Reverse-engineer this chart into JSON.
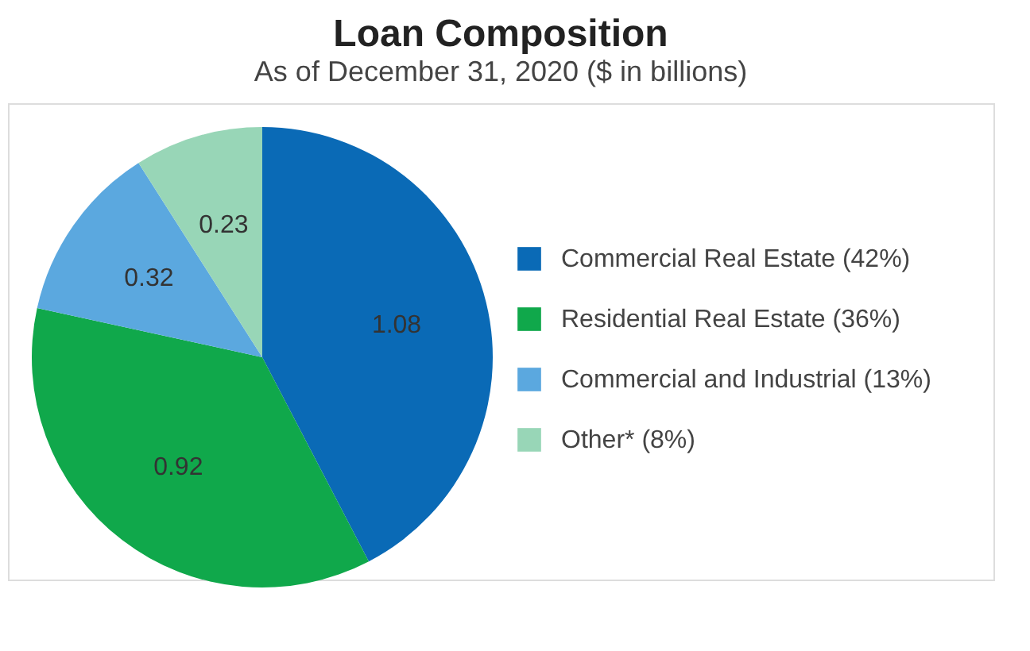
{
  "chart_data": {
    "type": "pie",
    "title": "Loan Composition",
    "subtitle": "As of December 31, 2020 ($ in billions)",
    "categories": [
      "Commercial Real Estate (42%)",
      "Residential Real Estate (36%)",
      "Commercial and Industrial (13%)",
      "Other* (8%)"
    ],
    "values": [
      1.08,
      0.92,
      0.32,
      0.23
    ],
    "colors": [
      "#0a6ab6",
      "#10a84b",
      "#5ba8df",
      "#98d6b7"
    ],
    "data_labels": true,
    "legend": "right"
  }
}
